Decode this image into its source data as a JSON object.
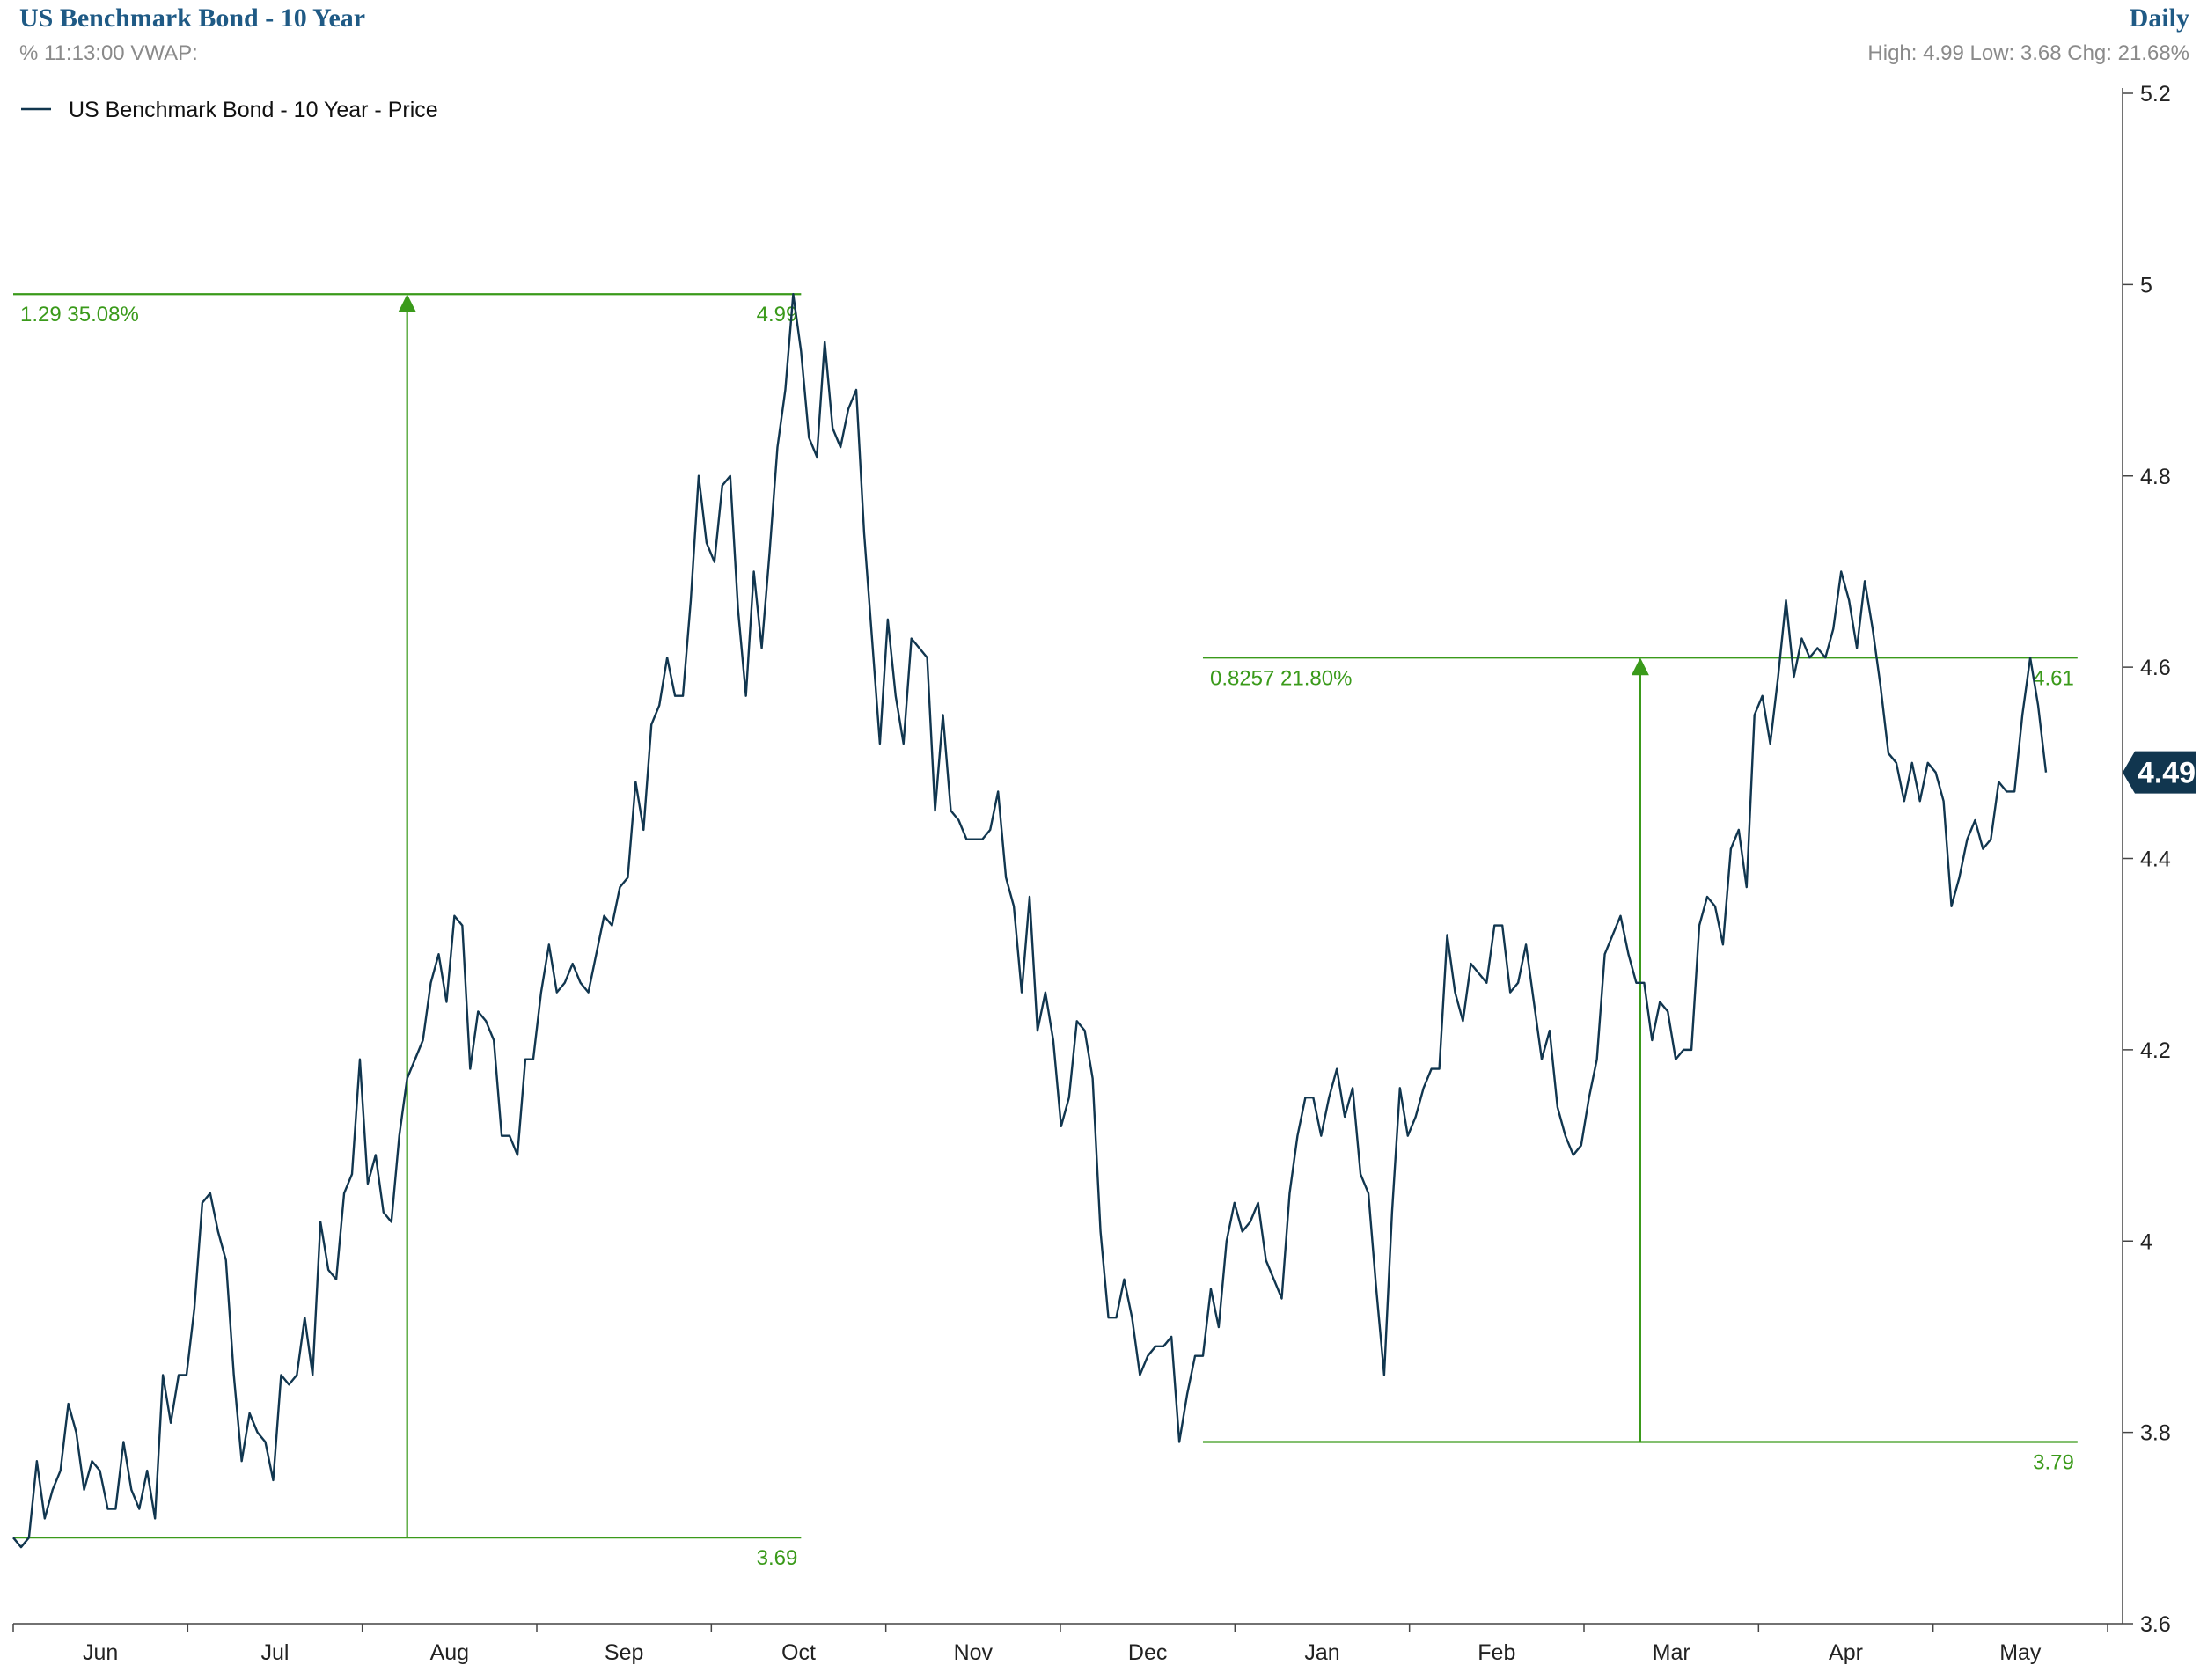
{
  "header": {
    "title": "US Benchmark Bond - 10 Year",
    "subtitle": "% 11:13:00 VWAP:",
    "period": "Daily",
    "stats": "High: 4.99 Low: 3.68 Chg: 21.68%"
  },
  "legend": {
    "label": "US Benchmark Bond - 10 Year - Price"
  },
  "current_value": "4.49",
  "colors": {
    "price": "#11364f",
    "annotation": "#3a9a1a",
    "title": "#1f5a85"
  },
  "chart_data": {
    "type": "line",
    "y_axis_position": "right",
    "ylim": [
      3.6,
      5.2
    ],
    "ytick_labels": [
      "5.2",
      "5",
      "4.8",
      "4.6",
      "4.4",
      "4.2",
      "4",
      "3.8",
      "3.6"
    ],
    "yticks": [
      5.2,
      5.0,
      4.8,
      4.6,
      4.4,
      4.2,
      4.0,
      3.8,
      3.6
    ],
    "month_labels": [
      "Jun",
      "Jul",
      "Aug",
      "Sep",
      "Oct",
      "Nov",
      "Dec",
      "Jan",
      "Feb",
      "Mar",
      "Apr",
      "May"
    ],
    "series": [
      {
        "name": "US Benchmark Bond - 10 Year - Price",
        "values": [
          3.69,
          3.68,
          3.69,
          3.77,
          3.71,
          3.74,
          3.76,
          3.83,
          3.8,
          3.74,
          3.77,
          3.76,
          3.72,
          3.72,
          3.79,
          3.74,
          3.72,
          3.76,
          3.71,
          3.86,
          3.81,
          3.86,
          3.86,
          3.93,
          4.04,
          4.05,
          4.01,
          3.98,
          3.86,
          3.77,
          3.82,
          3.8,
          3.79,
          3.75,
          3.86,
          3.85,
          3.86,
          3.92,
          3.86,
          4.02,
          3.97,
          3.96,
          4.05,
          4.07,
          4.19,
          4.06,
          4.09,
          4.03,
          4.02,
          4.11,
          4.17,
          4.19,
          4.21,
          4.27,
          4.3,
          4.25,
          4.34,
          4.33,
          4.18,
          4.24,
          4.23,
          4.21,
          4.11,
          4.11,
          4.09,
          4.19,
          4.19,
          4.26,
          4.31,
          4.26,
          4.27,
          4.29,
          4.27,
          4.26,
          4.3,
          4.34,
          4.33,
          4.37,
          4.38,
          4.48,
          4.43,
          4.54,
          4.56,
          4.61,
          4.57,
          4.57,
          4.67,
          4.8,
          4.73,
          4.71,
          4.79,
          4.8,
          4.66,
          4.57,
          4.7,
          4.62,
          4.72,
          4.83,
          4.89,
          4.99,
          4.93,
          4.84,
          4.82,
          4.94,
          4.85,
          4.83,
          4.87,
          4.89,
          4.74,
          4.63,
          4.52,
          4.65,
          4.57,
          4.52,
          4.63,
          4.62,
          4.61,
          4.45,
          4.55,
          4.45,
          4.44,
          4.42,
          4.42,
          4.42,
          4.43,
          4.47,
          4.38,
          4.35,
          4.26,
          4.36,
          4.22,
          4.26,
          4.21,
          4.12,
          4.15,
          4.23,
          4.22,
          4.17,
          4.01,
          3.92,
          3.92,
          3.96,
          3.92,
          3.86,
          3.88,
          3.89,
          3.89,
          3.9,
          3.79,
          3.84,
          3.88,
          3.88,
          3.95,
          3.91,
          4.0,
          4.04,
          4.01,
          4.02,
          4.04,
          3.98,
          3.96,
          3.94,
          4.05,
          4.11,
          4.15,
          4.15,
          4.11,
          4.15,
          4.18,
          4.13,
          4.16,
          4.07,
          4.05,
          3.95,
          3.86,
          4.03,
          4.16,
          4.11,
          4.13,
          4.16,
          4.18,
          4.18,
          4.32,
          4.26,
          4.23,
          4.29,
          4.28,
          4.27,
          4.33,
          4.33,
          4.26,
          4.27,
          4.31,
          4.25,
          4.19,
          4.22,
          4.14,
          4.11,
          4.09,
          4.1,
          4.15,
          4.19,
          4.3,
          4.32,
          4.34,
          4.3,
          4.27,
          4.27,
          4.21,
          4.25,
          4.24,
          4.19,
          4.2,
          4.2,
          4.33,
          4.36,
          4.35,
          4.31,
          4.41,
          4.43,
          4.37,
          4.55,
          4.57,
          4.52,
          4.59,
          4.67,
          4.59,
          4.63,
          4.61,
          4.62,
          4.61,
          4.64,
          4.7,
          4.67,
          4.62,
          4.69,
          4.64,
          4.58,
          4.51,
          4.5,
          4.46,
          4.5,
          4.46,
          4.5,
          4.49,
          4.46,
          4.35,
          4.38,
          4.42,
          4.44,
          4.41,
          4.42,
          4.48,
          4.47,
          4.47,
          4.55,
          4.61,
          4.56,
          4.49
        ]
      }
    ],
    "annotations": [
      {
        "start_index": 0,
        "end_index": 100,
        "low": 3.69,
        "high": 4.99,
        "low_label": "3.69",
        "high_label": "4.99",
        "change_label": "1.29 35.08%"
      },
      {
        "start_index": 151,
        "end_index": 262,
        "low": 3.79,
        "high": 4.61,
        "low_label": "3.79",
        "high_label": "4.61",
        "change_label": "0.8257 21.80%"
      }
    ]
  }
}
